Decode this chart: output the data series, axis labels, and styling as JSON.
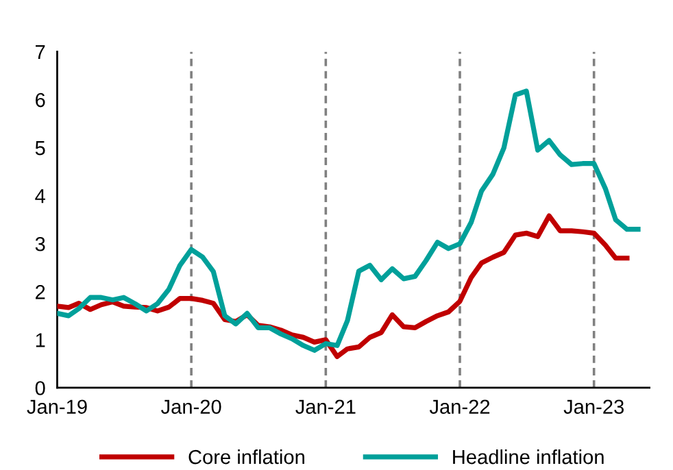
{
  "chart_data": {
    "type": "line",
    "x": [
      "2019-01",
      "2019-02",
      "2019-03",
      "2019-04",
      "2019-05",
      "2019-06",
      "2019-07",
      "2019-08",
      "2019-09",
      "2019-10",
      "2019-11",
      "2019-12",
      "2020-01",
      "2020-02",
      "2020-03",
      "2020-04",
      "2020-05",
      "2020-06",
      "2020-07",
      "2020-08",
      "2020-09",
      "2020-10",
      "2020-11",
      "2020-12",
      "2021-01",
      "2021-02",
      "2021-03",
      "2021-04",
      "2021-05",
      "2021-06",
      "2021-07",
      "2021-08",
      "2021-09",
      "2021-10",
      "2021-11",
      "2021-12",
      "2022-01",
      "2022-02",
      "2022-03",
      "2022-04",
      "2022-05",
      "2022-06",
      "2022-07",
      "2022-08",
      "2022-09",
      "2022-10",
      "2022-11",
      "2022-12",
      "2023-01",
      "2023-02",
      "2023-03",
      "2023-04",
      "2023-05"
    ],
    "series": [
      {
        "name": "Core inflation",
        "color": "#c00000",
        "values": [
          1.7,
          1.67,
          1.76,
          1.63,
          1.73,
          1.79,
          1.7,
          1.68,
          1.67,
          1.6,
          1.68,
          1.86,
          1.86,
          1.82,
          1.76,
          1.42,
          1.38,
          1.52,
          1.3,
          1.27,
          1.2,
          1.1,
          1.05,
          0.95,
          1.0,
          0.65,
          0.81,
          0.85,
          1.05,
          1.15,
          1.52,
          1.27,
          1.25,
          1.38,
          1.5,
          1.58,
          1.8,
          2.3,
          2.6,
          2.72,
          2.82,
          3.18,
          3.22,
          3.15,
          3.58,
          3.27,
          3.27,
          3.25,
          3.22,
          2.97,
          2.7,
          2.7,
          null
        ]
      },
      {
        "name": "Headline inflation",
        "color": "#00a09a",
        "values": [
          1.55,
          1.5,
          1.65,
          1.88,
          1.88,
          1.83,
          1.88,
          1.75,
          1.6,
          1.75,
          2.05,
          2.55,
          2.88,
          2.72,
          2.42,
          1.5,
          1.33,
          1.55,
          1.25,
          1.25,
          1.12,
          1.02,
          0.88,
          0.78,
          0.92,
          0.88,
          1.4,
          2.43,
          2.55,
          2.25,
          2.48,
          2.27,
          2.32,
          2.65,
          3.03,
          2.9,
          3.0,
          3.45,
          4.1,
          4.45,
          5.0,
          6.1,
          6.18,
          4.95,
          5.15,
          4.85,
          4.65,
          4.67,
          4.67,
          4.15,
          3.5,
          3.3,
          3.3
        ]
      }
    ],
    "xlim": [
      "2019-01",
      "2023-06"
    ],
    "xticks": [
      {
        "value": "2019-01",
        "label": "Jan-19"
      },
      {
        "value": "2020-01",
        "label": "Jan-20"
      },
      {
        "value": "2021-01",
        "label": "Jan-21"
      },
      {
        "value": "2022-01",
        "label": "Jan-22"
      },
      {
        "value": "2023-01",
        "label": "Jan-23"
      }
    ],
    "ylim": [
      0,
      7
    ],
    "yticks": [
      0,
      1,
      2,
      3,
      4,
      5,
      6,
      7
    ],
    "ref_lines": [
      {
        "axis": "x",
        "value": "2020-01",
        "color": "#808080",
        "line_style": "dashed"
      },
      {
        "axis": "x",
        "value": "2021-01",
        "color": "#808080",
        "line_style": "dashed"
      },
      {
        "axis": "x",
        "value": "2022-01",
        "color": "#808080",
        "line_style": "dashed"
      },
      {
        "axis": "x",
        "value": "2023-01",
        "color": "#808080",
        "line_style": "dashed"
      }
    ],
    "grid": false,
    "legend": "bottom",
    "marker": "none",
    "line_style": "solid"
  }
}
